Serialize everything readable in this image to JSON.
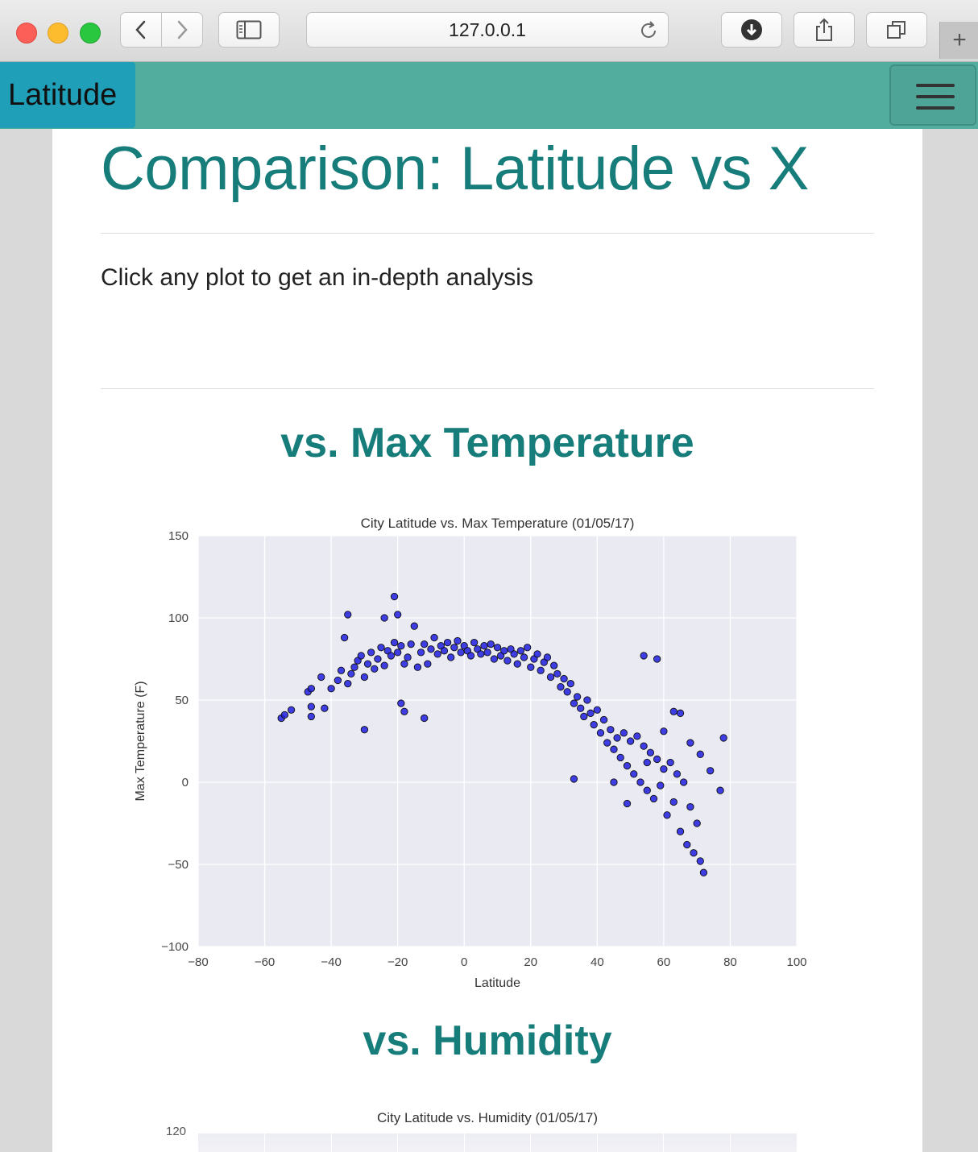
{
  "browser": {
    "url": "127.0.0.1",
    "new_tab_symbol": "+"
  },
  "navbar": {
    "brand": "Latitude"
  },
  "page": {
    "title": "Comparison: Latitude vs X",
    "subtitle": "Click any plot to get an in-depth analysis",
    "sections": [
      {
        "title": "vs. Max Temperature"
      },
      {
        "title": "vs. Humidity"
      }
    ]
  },
  "chart_data": [
    {
      "type": "scatter",
      "title": "City Latitude vs. Max Temperature (01/05/17)",
      "xlabel": "Latitude",
      "ylabel": "Max Temperature (F)",
      "xlim": [
        -80,
        100
      ],
      "ylim": [
        -100,
        150
      ],
      "xticks": [
        "−80",
        "−60",
        "−40",
        "−20",
        "0",
        "20",
        "40",
        "60",
        "80",
        "100"
      ],
      "yticks": [
        "150",
        "100",
        "50",
        "0",
        "−50",
        "−100"
      ],
      "grid": true,
      "marker_color": "#1f1fe0",
      "background": "#eaeaf2",
      "points": [
        [
          -55,
          39
        ],
        [
          -54,
          41
        ],
        [
          -52,
          44
        ],
        [
          -47,
          55
        ],
        [
          -46,
          57
        ],
        [
          -46,
          46
        ],
        [
          -46,
          40
        ],
        [
          -43,
          64
        ],
        [
          -42,
          45
        ],
        [
          -40,
          57
        ],
        [
          -38,
          62
        ],
        [
          -37,
          68
        ],
        [
          -36,
          88
        ],
        [
          -35,
          60
        ],
        [
          -34,
          66
        ],
        [
          -33,
          70
        ],
        [
          -32,
          74
        ],
        [
          -31,
          77
        ],
        [
          -30,
          64
        ],
        [
          -29,
          72
        ],
        [
          -28,
          79
        ],
        [
          -27,
          69
        ],
        [
          -26,
          75
        ],
        [
          -25,
          82
        ],
        [
          -24,
          71
        ],
        [
          -23,
          80
        ],
        [
          -22,
          77
        ],
        [
          -21,
          85
        ],
        [
          -20,
          79
        ],
        [
          -19,
          83
        ],
        [
          -18,
          72
        ],
        [
          -17,
          76
        ],
        [
          -16,
          84
        ],
        [
          -15,
          95
        ],
        [
          -14,
          70
        ],
        [
          -13,
          79
        ],
        [
          -12,
          84
        ],
        [
          -11,
          72
        ],
        [
          -10,
          81
        ],
        [
          -9,
          88
        ],
        [
          -8,
          78
        ],
        [
          -7,
          83
        ],
        [
          -6,
          80
        ],
        [
          -5,
          85
        ],
        [
          -4,
          76
        ],
        [
          -3,
          82
        ],
        [
          -2,
          86
        ],
        [
          -1,
          79
        ],
        [
          0,
          83
        ],
        [
          1,
          80
        ],
        [
          2,
          77
        ],
        [
          3,
          85
        ],
        [
          4,
          81
        ],
        [
          5,
          78
        ],
        [
          6,
          83
        ],
        [
          7,
          79
        ],
        [
          8,
          84
        ],
        [
          9,
          75
        ],
        [
          10,
          82
        ],
        [
          11,
          77
        ],
        [
          12,
          80
        ],
        [
          13,
          74
        ],
        [
          14,
          81
        ],
        [
          15,
          78
        ],
        [
          16,
          72
        ],
        [
          17,
          80
        ],
        [
          18,
          76
        ],
        [
          19,
          82
        ],
        [
          20,
          70
        ],
        [
          21,
          75
        ],
        [
          22,
          78
        ],
        [
          23,
          68
        ],
        [
          24,
          73
        ],
        [
          25,
          76
        ],
        [
          26,
          64
        ],
        [
          27,
          71
        ],
        [
          28,
          66
        ],
        [
          29,
          58
        ],
        [
          30,
          63
        ],
        [
          31,
          55
        ],
        [
          32,
          60
        ],
        [
          33,
          48
        ],
        [
          34,
          52
        ],
        [
          35,
          45
        ],
        [
          36,
          40
        ],
        [
          37,
          50
        ],
        [
          38,
          42
        ],
        [
          39,
          35
        ],
        [
          40,
          44
        ],
        [
          41,
          30
        ],
        [
          42,
          38
        ],
        [
          43,
          24
        ],
        [
          44,
          32
        ],
        [
          45,
          20
        ],
        [
          46,
          27
        ],
        [
          47,
          15
        ],
        [
          48,
          30
        ],
        [
          49,
          10
        ],
        [
          50,
          25
        ],
        [
          51,
          5
        ],
        [
          52,
          28
        ],
        [
          53,
          0
        ],
        [
          54,
          22
        ],
        [
          55,
          -5
        ],
        [
          56,
          18
        ],
        [
          57,
          -10
        ],
        [
          58,
          14
        ],
        [
          59,
          -2
        ],
        [
          60,
          8
        ],
        [
          61,
          -20
        ],
        [
          62,
          12
        ],
        [
          63,
          -12
        ],
        [
          64,
          5
        ],
        [
          65,
          -30
        ],
        [
          66,
          0
        ],
        [
          67,
          -38
        ],
        [
          68,
          -15
        ],
        [
          69,
          -43
        ],
        [
          70,
          -25
        ],
        [
          71,
          -48
        ],
        [
          72,
          -55
        ],
        [
          -35,
          102
        ],
        [
          -24,
          100
        ],
        [
          -21,
          113
        ],
        [
          -20,
          102
        ],
        [
          -30,
          32
        ],
        [
          -19,
          48
        ],
        [
          -18,
          43
        ],
        [
          -12,
          39
        ],
        [
          54,
          77
        ],
        [
          58,
          75
        ],
        [
          63,
          43
        ],
        [
          65,
          42
        ],
        [
          74,
          7
        ],
        [
          77,
          -5
        ],
        [
          78,
          27
        ],
        [
          33,
          2
        ],
        [
          45,
          0
        ],
        [
          49,
          -13
        ],
        [
          55,
          12
        ],
        [
          60,
          31
        ],
        [
          68,
          24
        ],
        [
          71,
          17
        ]
      ]
    },
    {
      "type": "scatter",
      "title": "City Latitude vs. Humidity (01/05/17)",
      "yticks": [
        "120"
      ]
    }
  ]
}
